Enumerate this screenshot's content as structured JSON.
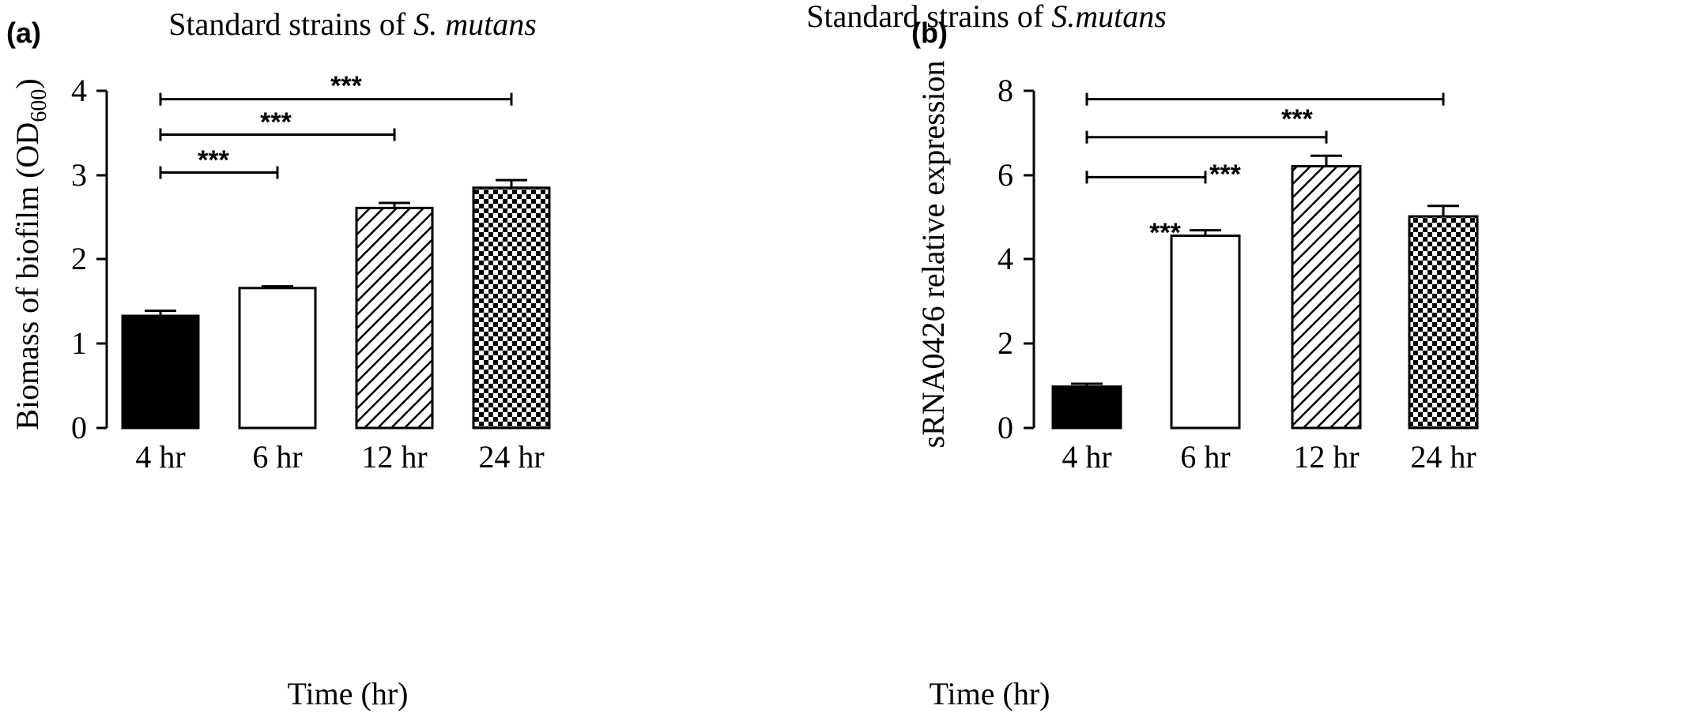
{
  "chart_data": [
    {
      "panel_label": "(a)",
      "type": "bar",
      "title_prefix": "Standard strains of ",
      "title_italic": "S. mutans",
      "xlabel": "Time (hr)",
      "ylabel_main": "Biomass of biofilm (OD",
      "ylabel_sub": "600",
      "ylabel_close": ")",
      "categories": [
        "4 hr",
        "6 hr",
        "12 hr",
        "24 hr"
      ],
      "values": [
        1.33,
        1.66,
        2.61,
        2.85
      ],
      "errors": [
        0.06,
        0.02,
        0.06,
        0.09
      ],
      "fills": [
        "solid-black",
        "white",
        "diagonal-hatch",
        "checkerboard"
      ],
      "ylim": [
        0,
        4
      ],
      "yticks": [
        "0",
        "1",
        "2",
        "3",
        "4"
      ],
      "significance": [
        {
          "from": 0,
          "to": 1,
          "label": "***",
          "level": 3.03
        },
        {
          "from": 0,
          "to": 2,
          "label": "***",
          "level": 3.48
        },
        {
          "from": 0,
          "to": 3,
          "label": "***",
          "level": 3.9
        }
      ]
    },
    {
      "panel_label": "(b)",
      "type": "bar",
      "title_prefix": "Standard strains of ",
      "title_italic": "S.mutans",
      "xlabel": "Time (hr)",
      "ylabel_main": "sRNA0426 relative expression",
      "ylabel_sub": "",
      "ylabel_close": "",
      "categories": [
        "4 hr",
        "6 hr",
        "12 hr",
        "24 hr"
      ],
      "values": [
        0.98,
        4.56,
        6.21,
        5.02
      ],
      "errors": [
        0.07,
        0.13,
        0.25,
        0.25
      ],
      "fills": [
        "solid-black",
        "white",
        "diagonal-hatch",
        "checkerboard"
      ],
      "ylim": [
        0,
        8
      ],
      "yticks": [
        "0",
        "2",
        "4",
        "6",
        "8"
      ],
      "significance": [
        {
          "from": 0,
          "to": 1,
          "label": "***",
          "level": 5.95
        },
        {
          "from": 0,
          "to": 2,
          "label": "***",
          "level": 6.9
        },
        {
          "from": 0,
          "to": 3,
          "label": "***",
          "level": 7.8
        }
      ]
    }
  ]
}
